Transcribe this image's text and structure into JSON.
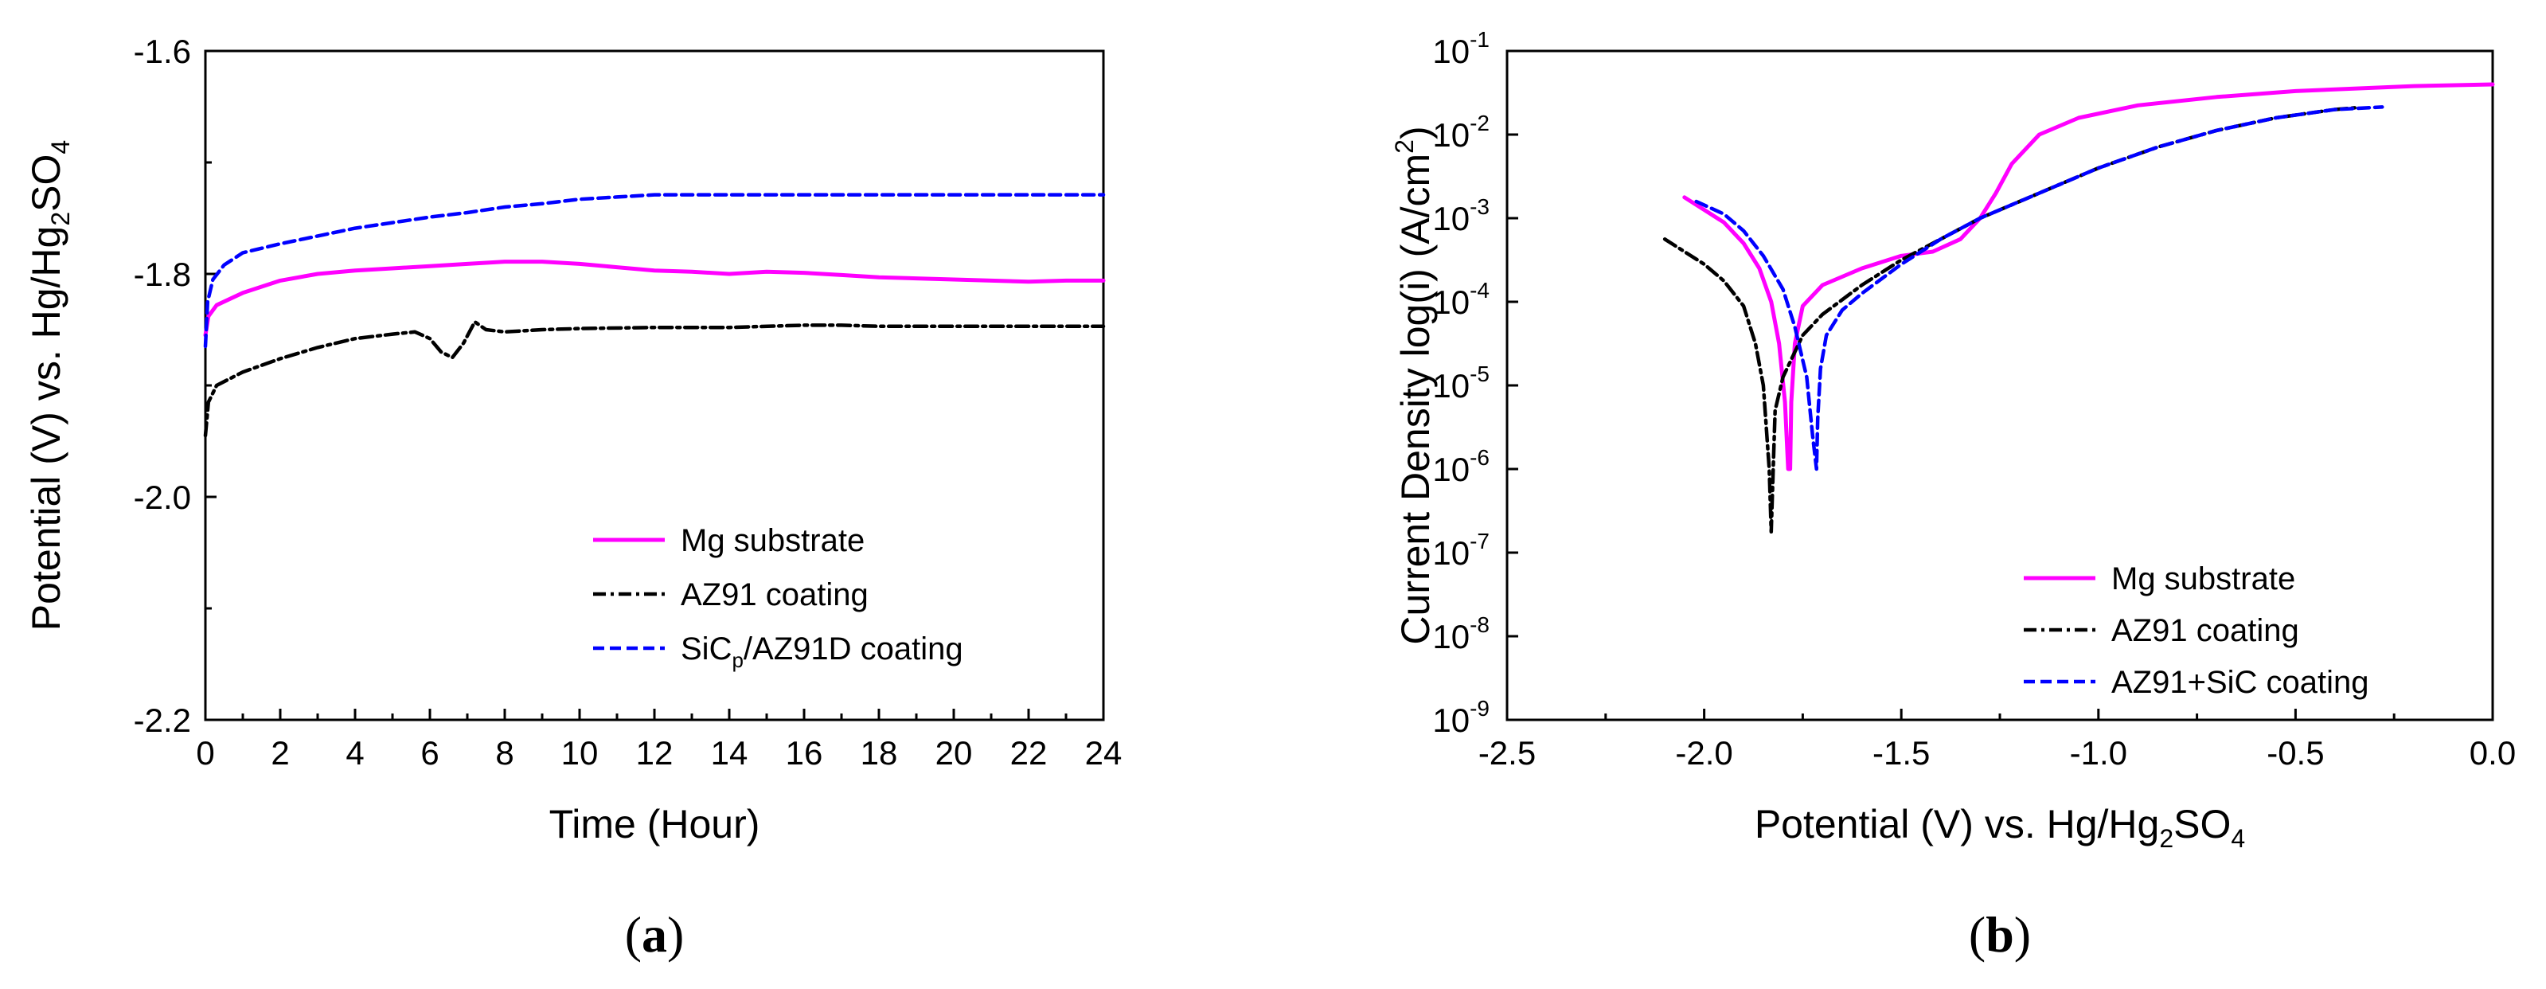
{
  "chart_data": [
    {
      "type": "line",
      "panel_label": "(a)",
      "panel_label_parts": {
        "open": "(",
        "letter": "a",
        "close": ")"
      },
      "xlabel": "Time (Hour)",
      "ylabel": {
        "main": "Potential (V) vs. Hg/Hg",
        "sub1": "2",
        "mid": "SO",
        "sub2": "4"
      },
      "xlim": [
        0,
        24
      ],
      "ylim": [
        -2.2,
        -1.6
      ],
      "x_ticks": [
        0,
        2,
        4,
        6,
        8,
        10,
        12,
        14,
        16,
        18,
        20,
        22,
        24
      ],
      "x_tick_labels": [
        "0",
        "2",
        "4",
        "6",
        "8",
        "10",
        "12",
        "14",
        "16",
        "18",
        "20",
        "22",
        "24"
      ],
      "y_ticks": [
        -2.2,
        -2.0,
        -1.8,
        -1.6
      ],
      "y_tick_labels": [
        "-2.2",
        "-2.0",
        "-1.8",
        "-1.6"
      ],
      "legend_position": "bottom-right",
      "series": [
        {
          "name": "Mg substrate",
          "legend_parts": {
            "main": "Mg substrate"
          },
          "color": "#ff00ff",
          "style": "solid",
          "points": [
            [
              0,
              -1.855
            ],
            [
              0.08,
              -1.838
            ],
            [
              0.3,
              -1.828
            ],
            [
              1,
              -1.817
            ],
            [
              2,
              -1.806
            ],
            [
              3,
              -1.8
            ],
            [
              4,
              -1.797
            ],
            [
              5,
              -1.795
            ],
            [
              6,
              -1.793
            ],
            [
              7,
              -1.791
            ],
            [
              8,
              -1.789
            ],
            [
              9,
              -1.789
            ],
            [
              10,
              -1.791
            ],
            [
              11,
              -1.794
            ],
            [
              12,
              -1.797
            ],
            [
              13,
              -1.798
            ],
            [
              14,
              -1.8
            ],
            [
              15,
              -1.798
            ],
            [
              16,
              -1.799
            ],
            [
              17,
              -1.801
            ],
            [
              18,
              -1.803
            ],
            [
              19,
              -1.804
            ],
            [
              20,
              -1.805
            ],
            [
              21,
              -1.806
            ],
            [
              22,
              -1.807
            ],
            [
              23,
              -1.806
            ],
            [
              24,
              -1.806
            ]
          ]
        },
        {
          "name": "AZ91 coating",
          "legend_parts": {
            "main": "AZ91 coating"
          },
          "color": "#000000",
          "style": "dashdot",
          "points": [
            [
              0,
              -1.945
            ],
            [
              0.08,
              -1.915
            ],
            [
              0.3,
              -1.9
            ],
            [
              1,
              -1.888
            ],
            [
              2,
              -1.876
            ],
            [
              3,
              -1.866
            ],
            [
              4,
              -1.858
            ],
            [
              5,
              -1.854
            ],
            [
              5.6,
              -1.852
            ],
            [
              6.0,
              -1.858
            ],
            [
              6.3,
              -1.87
            ],
            [
              6.6,
              -1.875
            ],
            [
              6.9,
              -1.862
            ],
            [
              7.2,
              -1.843
            ],
            [
              7.5,
              -1.85
            ],
            [
              8,
              -1.852
            ],
            [
              9,
              -1.85
            ],
            [
              10,
              -1.849
            ],
            [
              12,
              -1.848
            ],
            [
              14,
              -1.848
            ],
            [
              16,
              -1.846
            ],
            [
              17,
              -1.846
            ],
            [
              18,
              -1.847
            ],
            [
              20,
              -1.847
            ],
            [
              22,
              -1.847
            ],
            [
              24,
              -1.847
            ]
          ]
        },
        {
          "name": "SiCp/AZ91D coating",
          "legend_parts": {
            "main": "SiC",
            "sub": "p",
            "rest": "/AZ91D coating"
          },
          "color": "#0000ff",
          "style": "dashed",
          "points": [
            [
              0,
              -1.865
            ],
            [
              0.06,
              -1.825
            ],
            [
              0.2,
              -1.805
            ],
            [
              0.5,
              -1.792
            ],
            [
              1,
              -1.781
            ],
            [
              2,
              -1.773
            ],
            [
              3,
              -1.766
            ],
            [
              4,
              -1.759
            ],
            [
              5,
              -1.754
            ],
            [
              6,
              -1.749
            ],
            [
              7,
              -1.745
            ],
            [
              8,
              -1.74
            ],
            [
              9,
              -1.737
            ],
            [
              10,
              -1.733
            ],
            [
              11,
              -1.731
            ],
            [
              12,
              -1.729
            ],
            [
              14,
              -1.729
            ],
            [
              16,
              -1.729
            ],
            [
              18,
              -1.729
            ],
            [
              20,
              -1.729
            ],
            [
              22,
              -1.729
            ],
            [
              24,
              -1.729
            ]
          ]
        }
      ]
    },
    {
      "type": "line",
      "panel_label": "(b)",
      "panel_label_parts": {
        "open": "(",
        "letter": "b",
        "close": ")"
      },
      "xlabel": {
        "main": "Potential (V) vs. Hg/Hg",
        "sub1": "2",
        "mid": "SO",
        "sub2": "4"
      },
      "ylabel": {
        "main": "Current Density log(i) (A/cm",
        "sup": "2",
        "end": ")"
      },
      "xlim": [
        -2.5,
        0.0
      ],
      "ylim_log10": [
        -9,
        -1
      ],
      "x_ticks": [
        -2.5,
        -2.0,
        -1.5,
        -1.0,
        -0.5,
        0.0
      ],
      "x_tick_labels": [
        "-2.5",
        "-2.0",
        "-1.5",
        "-1.0",
        "-0.5",
        "0.0"
      ],
      "y_ticks_log10": [
        -9,
        -8,
        -7,
        -6,
        -5,
        -4,
        -3,
        -2,
        -1
      ],
      "y_tick_base": "10",
      "y_tick_exponents": [
        "-9",
        "-8",
        "-7",
        "-6",
        "-5",
        "-4",
        "-3",
        "-2",
        "-1"
      ],
      "legend_position": "bottom-right",
      "series": [
        {
          "name": "Mg substrate",
          "color": "#ff00ff",
          "style": "solid",
          "points_log10": [
            [
              -2.05,
              -2.75
            ],
            [
              -2.0,
              -2.9
            ],
            [
              -1.95,
              -3.05
            ],
            [
              -1.9,
              -3.3
            ],
            [
              -1.86,
              -3.6
            ],
            [
              -1.83,
              -4.0
            ],
            [
              -1.81,
              -4.5
            ],
            [
              -1.795,
              -5.2
            ],
            [
              -1.787,
              -6.0
            ],
            [
              -1.782,
              -6.0
            ],
            [
              -1.779,
              -5.2
            ],
            [
              -1.77,
              -4.5
            ],
            [
              -1.75,
              -4.05
            ],
            [
              -1.7,
              -3.8
            ],
            [
              -1.6,
              -3.6
            ],
            [
              -1.5,
              -3.45
            ],
            [
              -1.42,
              -3.4
            ],
            [
              -1.35,
              -3.25
            ],
            [
              -1.3,
              -3.0
            ],
            [
              -1.26,
              -2.7
            ],
            [
              -1.22,
              -2.35
            ],
            [
              -1.15,
              -2.0
            ],
            [
              -1.05,
              -1.8
            ],
            [
              -0.9,
              -1.65
            ],
            [
              -0.7,
              -1.55
            ],
            [
              -0.5,
              -1.48
            ],
            [
              -0.2,
              -1.42
            ],
            [
              0.0,
              -1.4
            ]
          ]
        },
        {
          "name": "AZ91 coating",
          "color": "#000000",
          "style": "dashdot",
          "points_log10": [
            [
              -2.1,
              -3.25
            ],
            [
              -2.0,
              -3.55
            ],
            [
              -1.95,
              -3.75
            ],
            [
              -1.9,
              -4.05
            ],
            [
              -1.87,
              -4.5
            ],
            [
              -1.85,
              -5.0
            ],
            [
              -1.835,
              -6.0
            ],
            [
              -1.83,
              -6.75
            ],
            [
              -1.825,
              -6.0
            ],
            [
              -1.82,
              -5.3
            ],
            [
              -1.8,
              -4.9
            ],
            [
              -1.75,
              -4.4
            ],
            [
              -1.7,
              -4.15
            ],
            [
              -1.6,
              -3.8
            ],
            [
              -1.5,
              -3.5
            ],
            [
              -1.4,
              -3.25
            ],
            [
              -1.3,
              -3.0
            ],
            [
              -1.2,
              -2.8
            ],
            [
              -1.1,
              -2.6
            ],
            [
              -1.0,
              -2.4
            ],
            [
              -0.85,
              -2.15
            ],
            [
              -0.7,
              -1.95
            ],
            [
              -0.55,
              -1.8
            ],
            [
              -0.4,
              -1.7
            ],
            [
              -0.35,
              -1.68
            ]
          ]
        },
        {
          "name": "AZ91+SiC coating",
          "color": "#0000ff",
          "style": "dashed",
          "points_log10": [
            [
              -2.02,
              -2.8
            ],
            [
              -1.95,
              -2.95
            ],
            [
              -1.9,
              -3.15
            ],
            [
              -1.85,
              -3.45
            ],
            [
              -1.8,
              -3.85
            ],
            [
              -1.77,
              -4.3
            ],
            [
              -1.74,
              -4.9
            ],
            [
              -1.725,
              -5.6
            ],
            [
              -1.715,
              -6.0
            ],
            [
              -1.712,
              -5.4
            ],
            [
              -1.705,
              -4.8
            ],
            [
              -1.69,
              -4.4
            ],
            [
              -1.65,
              -4.1
            ],
            [
              -1.6,
              -3.9
            ],
            [
              -1.5,
              -3.55
            ],
            [
              -1.4,
              -3.25
            ],
            [
              -1.3,
              -3.0
            ],
            [
              -1.2,
              -2.8
            ],
            [
              -1.1,
              -2.6
            ],
            [
              -1.0,
              -2.4
            ],
            [
              -0.85,
              -2.15
            ],
            [
              -0.7,
              -1.95
            ],
            [
              -0.55,
              -1.8
            ],
            [
              -0.4,
              -1.7
            ],
            [
              -0.28,
              -1.67
            ]
          ]
        }
      ]
    }
  ]
}
